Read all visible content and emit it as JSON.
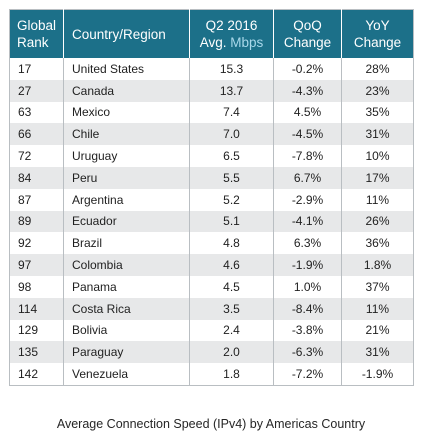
{
  "chart_data": {
    "type": "table",
    "columns": [
      {
        "line1": "Global",
        "line2a": "Rank",
        "line2b": ""
      },
      {
        "line1": "Country/Region",
        "line2a": "",
        "line2b": ""
      },
      {
        "line1": "Q2 2016",
        "line2a": "Avg. ",
        "line2b": "Mbps"
      },
      {
        "line1": "QoQ",
        "line2a": "Change",
        "line2b": ""
      },
      {
        "line1": "YoY",
        "line2a": "Change",
        "line2b": ""
      }
    ],
    "rows": [
      {
        "rank": "17",
        "country": "United States",
        "avg": "15.3",
        "qoq": "-0.2%",
        "yoy": "28%"
      },
      {
        "rank": "27",
        "country": "Canada",
        "avg": "13.7",
        "qoq": "-4.3%",
        "yoy": "23%"
      },
      {
        "rank": "63",
        "country": "Mexico",
        "avg": "7.4",
        "qoq": "4.5%",
        "yoy": "35%"
      },
      {
        "rank": "66",
        "country": "Chile",
        "avg": "7.0",
        "qoq": "-4.5%",
        "yoy": "31%"
      },
      {
        "rank": "72",
        "country": "Uruguay",
        "avg": "6.5",
        "qoq": "-7.8%",
        "yoy": "10%"
      },
      {
        "rank": "84",
        "country": "Peru",
        "avg": "5.5",
        "qoq": "6.7%",
        "yoy": "17%"
      },
      {
        "rank": "87",
        "country": "Argentina",
        "avg": "5.2",
        "qoq": "-2.9%",
        "yoy": "11%"
      },
      {
        "rank": "89",
        "country": "Ecuador",
        "avg": "5.1",
        "qoq": "-4.1%",
        "yoy": "26%"
      },
      {
        "rank": "92",
        "country": "Brazil",
        "avg": "4.8",
        "qoq": "6.3%",
        "yoy": "36%"
      },
      {
        "rank": "97",
        "country": "Colombia",
        "avg": "4.6",
        "qoq": "-1.9%",
        "yoy": "1.8%"
      },
      {
        "rank": "98",
        "country": "Panama",
        "avg": "4.5",
        "qoq": "1.0%",
        "yoy": "37%"
      },
      {
        "rank": "114",
        "country": "Costa Rica",
        "avg": "3.5",
        "qoq": "-8.4%",
        "yoy": "11%"
      },
      {
        "rank": "129",
        "country": "Bolivia",
        "avg": "2.4",
        "qoq": "-3.8%",
        "yoy": "21%"
      },
      {
        "rank": "135",
        "country": "Paraguay",
        "avg": "2.0",
        "qoq": "-6.3%",
        "yoy": "31%"
      },
      {
        "rank": "142",
        "country": "Venezuela",
        "avg": "1.8",
        "qoq": "-7.2%",
        "yoy": "-1.9%"
      }
    ],
    "caption": "Average Connection Speed (IPv4) by Americas Country",
    "colors": {
      "header_bg": "#1c7089",
      "header_text": "#ffffff",
      "header_accent": "#a9d8ea",
      "row_alt": "#e7e8e9",
      "border": "#b9bec2"
    }
  }
}
